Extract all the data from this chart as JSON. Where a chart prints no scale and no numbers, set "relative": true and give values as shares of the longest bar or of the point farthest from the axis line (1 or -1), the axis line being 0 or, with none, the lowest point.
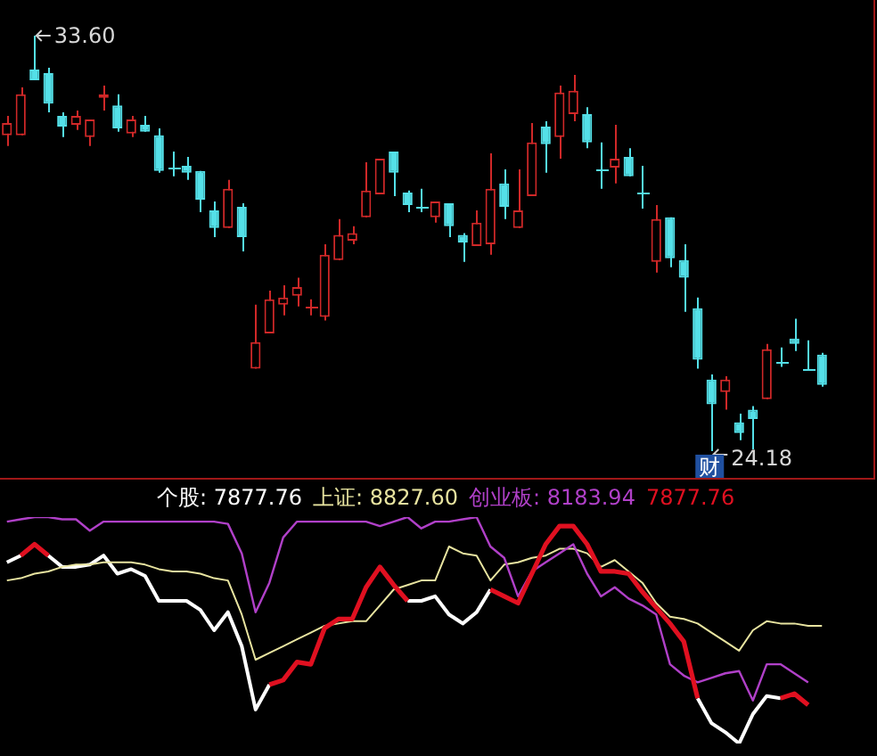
{
  "chart_data": [
    {
      "type": "candlestick",
      "categories": [
        null,
        null,
        null,
        null,
        null,
        null,
        null,
        null,
        null,
        null,
        null,
        null,
        null,
        null,
        null,
        null,
        null,
        null,
        null,
        null,
        null,
        null,
        null,
        null,
        null,
        null,
        null,
        null,
        null,
        null,
        null,
        null,
        null,
        null,
        null,
        null,
        null,
        null,
        null,
        null,
        null,
        null,
        null,
        null,
        null,
        null,
        null,
        null,
        null,
        null,
        null,
        null,
        null,
        null,
        null,
        null,
        null,
        null,
        null,
        null
      ],
      "ohlc": [
        [
          31.34,
          31.78,
          31.1,
          31.62
        ],
        [
          31.34,
          32.43,
          31.34,
          32.27
        ],
        [
          32.83,
          33.6,
          32.59,
          32.59
        ],
        [
          32.75,
          32.87,
          31.86,
          32.06
        ],
        [
          31.78,
          31.86,
          31.3,
          31.54
        ],
        [
          31.58,
          31.9,
          31.46,
          31.78
        ],
        [
          31.3,
          31.7,
          31.1,
          31.7
        ],
        [
          32.19,
          32.47,
          31.9,
          32.27
        ],
        [
          32.02,
          32.27,
          31.42,
          31.5
        ],
        [
          31.38,
          31.78,
          31.3,
          31.7
        ],
        [
          31.58,
          31.78,
          31.42,
          31.42
        ],
        [
          31.34,
          31.5,
          30.49,
          30.53
        ],
        [
          30.61,
          30.97,
          30.41,
          30.61
        ],
        [
          30.65,
          30.85,
          30.33,
          30.49
        ],
        [
          30.53,
          30.53,
          29.6,
          29.88
        ],
        [
          29.64,
          29.84,
          29.03,
          29.24
        ],
        [
          29.24,
          30.33,
          29.24,
          30.13
        ],
        [
          29.72,
          29.8,
          28.71,
          29.03
        ],
        [
          26.05,
          27.5,
          26.05,
          26.65
        ],
        [
          26.85,
          27.82,
          26.85,
          27.62
        ],
        [
          27.5,
          27.94,
          27.26,
          27.66
        ],
        [
          27.7,
          28.11,
          27.46,
          27.9
        ],
        [
          27.46,
          27.62,
          27.26,
          27.46
        ],
        [
          27.22,
          28.87,
          27.14,
          28.63
        ],
        [
          28.51,
          29.44,
          28.51,
          29.08
        ],
        [
          28.95,
          29.28,
          28.87,
          29.12
        ],
        [
          29.48,
          30.73,
          29.48,
          30.09
        ],
        [
          30.0,
          30.81,
          30.0,
          30.81
        ],
        [
          30.97,
          30.97,
          29.96,
          30.49
        ],
        [
          30.04,
          30.09,
          29.6,
          29.76
        ],
        [
          29.72,
          30.13,
          29.6,
          29.72
        ],
        [
          29.48,
          29.84,
          29.36,
          29.84
        ],
        [
          29.8,
          29.8,
          29.03,
          29.28
        ],
        [
          29.08,
          29.12,
          28.47,
          28.91
        ],
        [
          28.83,
          29.64,
          28.83,
          29.36
        ],
        [
          28.87,
          30.93,
          28.63,
          30.13
        ],
        [
          30.25,
          30.57,
          29.44,
          29.72
        ],
        [
          29.24,
          30.57,
          29.24,
          29.64
        ],
        [
          29.96,
          31.62,
          29.96,
          31.18
        ],
        [
          31.54,
          31.66,
          30.49,
          31.14
        ],
        [
          31.3,
          32.47,
          30.81,
          32.31
        ],
        [
          31.82,
          32.71,
          31.66,
          32.35
        ],
        [
          31.82,
          31.98,
          31.05,
          31.18
        ],
        [
          30.57,
          31.18,
          30.13,
          30.57
        ],
        [
          30.61,
          31.58,
          30.25,
          30.81
        ],
        [
          30.85,
          31.05,
          30.41,
          30.41
        ],
        [
          30.04,
          30.65,
          29.68,
          30.04
        ],
        [
          28.47,
          29.76,
          28.23,
          29.44
        ],
        [
          29.48,
          29.48,
          28.35,
          28.55
        ],
        [
          28.51,
          28.87,
          27.34,
          28.11
        ],
        [
          27.42,
          27.66,
          26.05,
          26.25
        ],
        [
          25.8,
          25.92,
          24.18,
          25.24
        ],
        [
          25.52,
          25.88,
          25.12,
          25.8
        ],
        [
          24.83,
          25.03,
          24.43,
          24.59
        ],
        [
          25.12,
          25.2,
          24.22,
          24.91
        ],
        [
          25.36,
          26.61,
          25.36,
          26.49
        ],
        [
          26.21,
          26.53,
          26.09,
          26.21
        ],
        [
          26.73,
          27.18,
          26.45,
          26.61
        ],
        [
          26.05,
          26.69,
          26.01,
          26.05
        ],
        [
          26.37,
          26.41,
          25.64,
          25.68
        ]
      ],
      "colors": [
        "#d02828",
        "#d02828",
        "#54e0e8",
        "#54e0e8",
        "#54e0e8",
        "#d02828",
        "#d02828",
        "#d02828",
        "#54e0e8",
        "#d02828",
        "#54e0e8",
        "#54e0e8",
        "#54e0e8",
        "#54e0e8",
        "#54e0e8",
        "#54e0e8",
        "#d02828",
        "#54e0e8",
        "#d02828",
        "#d02828",
        "#d02828",
        "#d02828",
        "#d02828",
        "#d02828",
        "#d02828",
        "#d02828",
        "#d02828",
        "#d02828",
        "#54e0e8",
        "#54e0e8",
        "#54e0e8",
        "#d02828",
        "#54e0e8",
        "#54e0e8",
        "#d02828",
        "#d02828",
        "#54e0e8",
        "#d02828",
        "#d02828",
        "#54e0e8",
        "#d02828",
        "#d02828",
        "#54e0e8",
        "#54e0e8",
        "#d02828",
        "#54e0e8",
        "#54e0e8",
        "#d02828",
        "#54e0e8",
        "#54e0e8",
        "#54e0e8",
        "#54e0e8",
        "#d02828",
        "#54e0e8",
        "#54e0e8",
        "#d02828",
        "#54e0e8",
        "#54e0e8",
        "#54e0e8",
        "#54e0e8"
      ],
      "annotations": [
        "33.60",
        "24.18",
        "财"
      ]
    },
    {
      "type": "line",
      "relative": true,
      "categories": [
        null,
        null,
        null,
        null,
        null,
        null,
        null,
        null,
        null,
        null,
        null,
        null,
        null,
        null,
        null,
        null,
        null,
        null,
        null,
        null,
        null,
        null,
        null,
        null,
        null,
        null,
        null,
        null,
        null,
        null,
        null,
        null,
        null,
        null,
        null,
        null,
        null,
        null,
        null,
        null,
        null,
        null,
        null,
        null,
        null,
        null,
        null,
        null,
        null,
        null,
        null,
        null,
        null,
        null,
        null,
        null,
        null,
        null,
        null,
        null
      ],
      "series": [
        {
          "color": "#ffffff",
          "values": [
            0.8,
            0.83,
            null,
            0.83,
            0.78,
            0.78,
            0.79,
            0.83,
            0.75,
            0.77,
            0.74,
            0.63,
            0.63,
            0.63,
            0.59,
            0.5,
            0.58,
            0.43,
            0.15,
            0.26,
            null,
            null,
            null,
            null,
            null,
            null,
            null,
            null,
            null,
            0.63,
            0.63,
            0.65,
            0.57,
            0.53,
            0.58,
            0.68,
            null,
            null,
            null,
            null,
            null,
            null,
            null,
            null,
            null,
            null,
            null,
            null,
            null,
            null,
            0.2,
            0.09,
            0.05,
            0,
            0.13,
            0.21,
            0.2,
            null,
            null,
            null
          ]
        },
        {
          "color": "#e8e4a0",
          "values": [
            0.72,
            0.73,
            0.75,
            0.76,
            0.78,
            0.79,
            0.79,
            0.8,
            0.8,
            0.8,
            0.79,
            0.77,
            0.76,
            0.76,
            0.75,
            0.73,
            0.72,
            0.57,
            0.37,
            0.4,
            0.43,
            0.46,
            0.49,
            0.52,
            0.53,
            0.54,
            0.54,
            0.61,
            0.68,
            0.7,
            0.72,
            0.72,
            0.87,
            0.84,
            0.83,
            0.72,
            0.79,
            0.8,
            0.82,
            0.83,
            0.86,
            0.86,
            0.84,
            0.78,
            0.81,
            0.76,
            0.71,
            0.62,
            0.56,
            0.55,
            0.53,
            0.49,
            0.45,
            0.41,
            0.5,
            0.54,
            0.53,
            0.53,
            0.52,
            0.52
          ]
        },
        {
          "color": "#b040c8",
          "values": [
            0.98,
            0.99,
            1,
            1,
            0.99,
            0.99,
            0.94,
            0.98,
            0.98,
            0.98,
            0.98,
            0.98,
            0.98,
            0.98,
            0.98,
            0.98,
            0.97,
            0.84,
            0.58,
            0.71,
            0.91,
            0.98,
            0.98,
            0.98,
            0.98,
            0.98,
            0.98,
            0.96,
            0.98,
            1,
            0.95,
            0.98,
            0.98,
            0.99,
            1,
            0.87,
            0.82,
            0.65,
            0.76,
            0.8,
            0.84,
            0.88,
            0.75,
            0.65,
            0.69,
            0.64,
            0.61,
            0.57,
            0.35,
            0.3,
            0.27,
            0.29,
            0.31,
            0.32,
            0.19,
            0.35,
            0.35,
            0.31,
            0.27,
            null
          ]
        },
        {
          "color": "#e01020",
          "values": [
            null,
            0.83,
            0.88,
            0.83,
            null,
            null,
            null,
            null,
            null,
            null,
            null,
            null,
            null,
            null,
            null,
            null,
            null,
            null,
            null,
            0.26,
            0.28,
            0.36,
            0.35,
            0.51,
            0.55,
            0.55,
            0.69,
            0.78,
            0.7,
            0.63,
            null,
            null,
            null,
            null,
            null,
            0.68,
            0.65,
            0.62,
            0.75,
            0.88,
            0.96,
            0.96,
            0.88,
            0.76,
            0.76,
            0.75,
            0.67,
            0.6,
            0.53,
            0.45,
            0.2,
            null,
            null,
            null,
            null,
            null,
            0.2,
            0.22,
            0.17,
            null
          ]
        }
      ],
      "annotations": [
        "个股: 7877.76",
        "上证: 8827.60",
        "创业板: 8183.94",
        "7877.76"
      ]
    }
  ]
}
